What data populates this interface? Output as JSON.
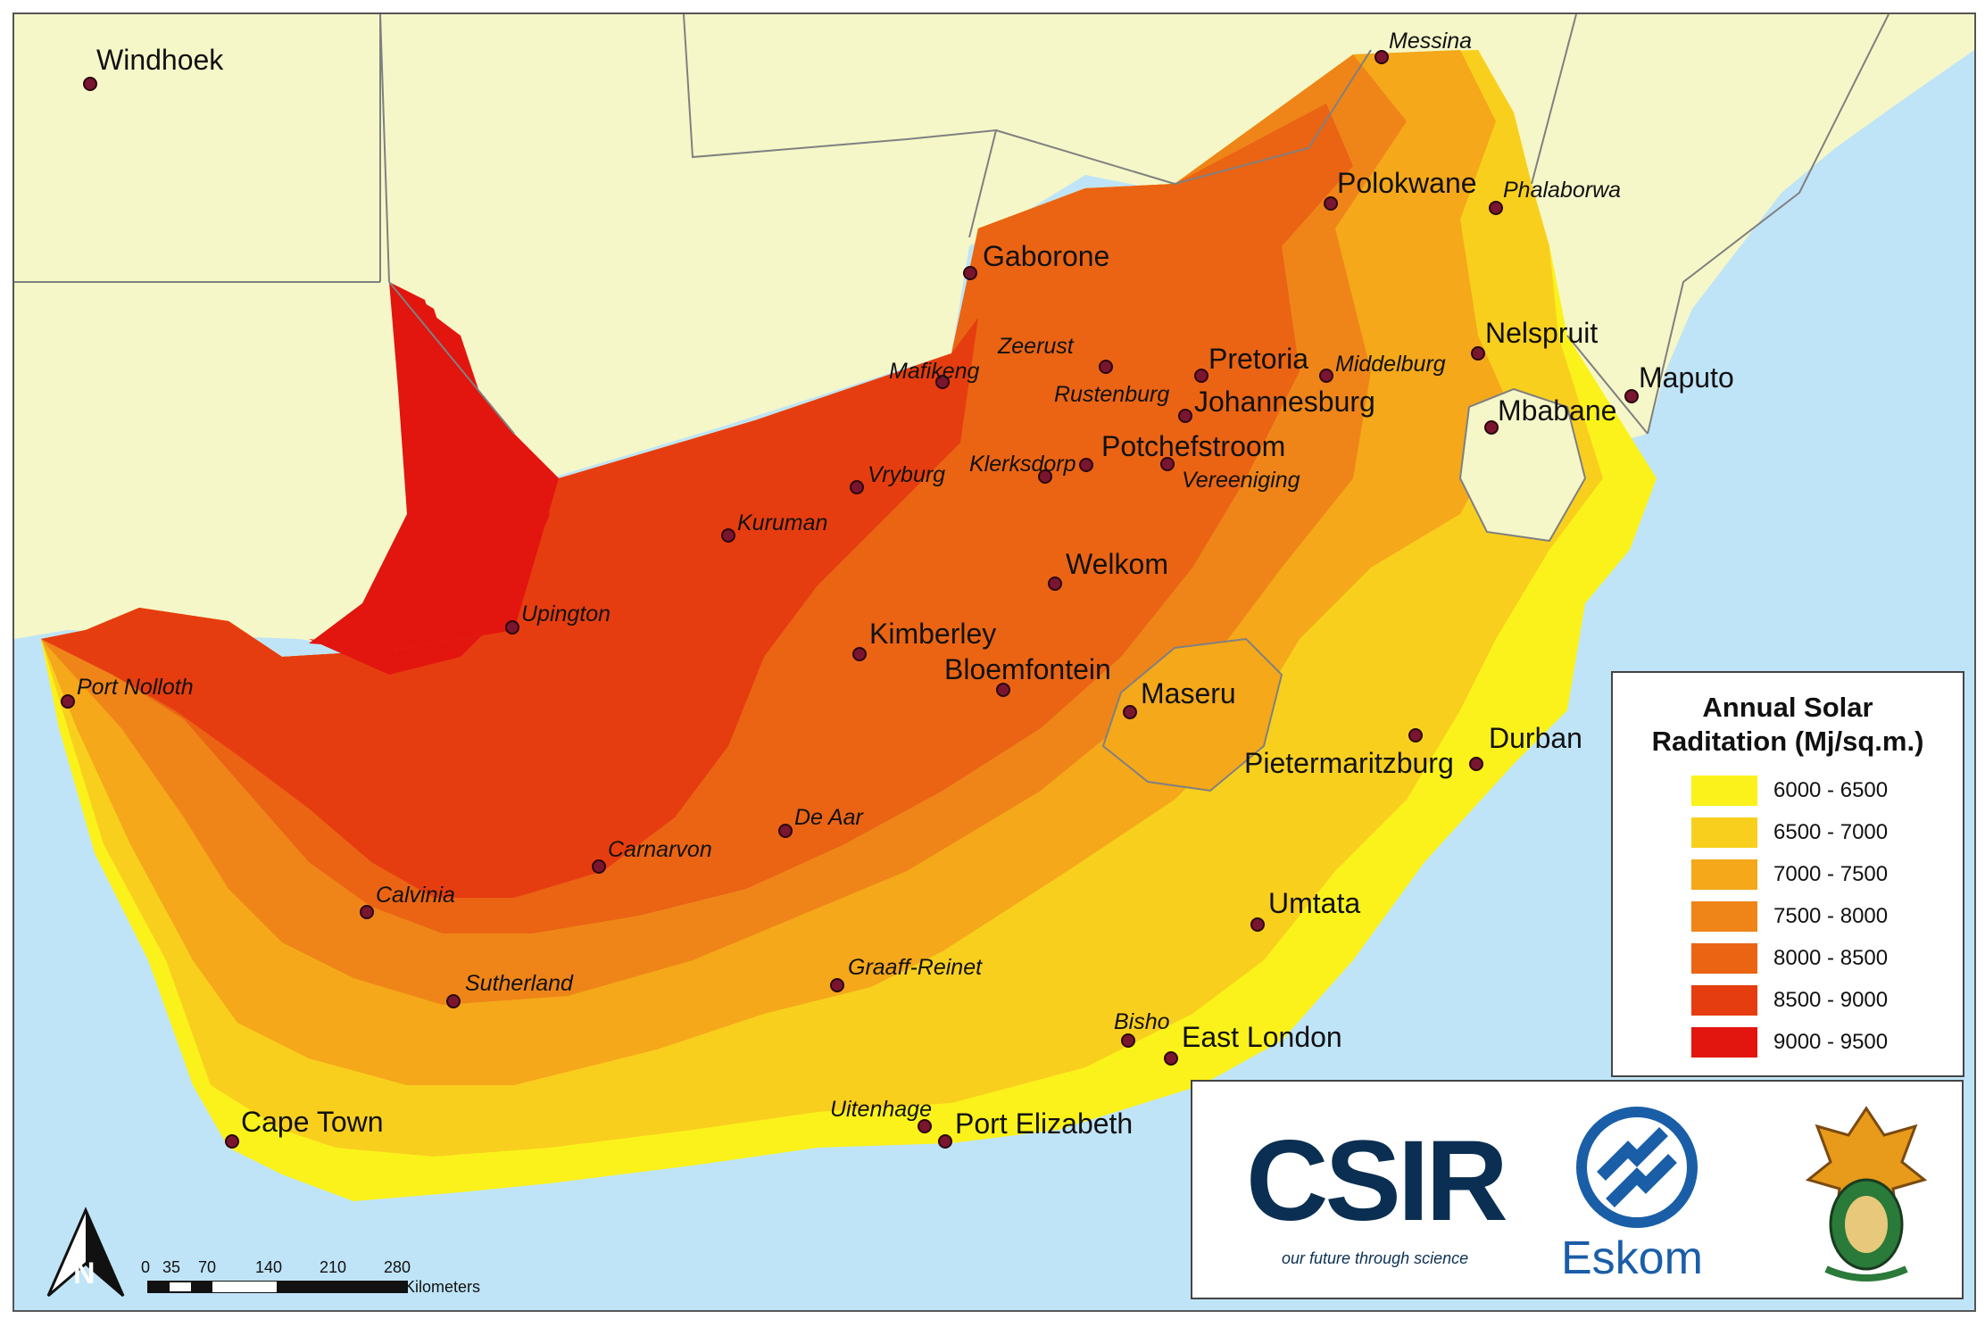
{
  "legend": {
    "title_line1": "Annual Solar",
    "title_line2": "Raditation (Mj/sq.m.)",
    "classes": [
      {
        "label": "6000 - 6500",
        "color": "#fbf21b"
      },
      {
        "label": "6500 - 7000",
        "color": "#f9cf1e"
      },
      {
        "label": "7000 - 7500",
        "color": "#f4a81a"
      },
      {
        "label": "7500 - 8000",
        "color": "#ef8518"
      },
      {
        "label": "8000 - 8500",
        "color": "#ea6414"
      },
      {
        "label": "8500 - 9000",
        "color": "#e63d10"
      },
      {
        "label": "9000 - 9500",
        "color": "#e2150f"
      }
    ]
  },
  "map_colors": {
    "ocean": "#bfe4f7",
    "land": "#f5f7c8",
    "border": "#808080"
  },
  "cities": {
    "windhoek": "Windhoek",
    "messina": "Messina",
    "polokwane": "Polokwane",
    "phalaborwa": "Phalaborwa",
    "gaborone": "Gaborone",
    "nelspruit": "Nelspruit",
    "zeerust": "Zeerust",
    "mafikeng": "Mafikeng",
    "pretoria": "Pretoria",
    "middelburg": "Middelburg",
    "rustenburg": "Rustenburg",
    "johannesburg": "Johannesburg",
    "maputo": "Maputo",
    "mbabane": "Mbabane",
    "klerksdorp": "Klerksdorp",
    "potchefstroom": "Potchefstroom",
    "vryburg": "Vryburg",
    "vereeniging": "Vereeniging",
    "kuruman": "Kuruman",
    "welkom": "Welkom",
    "upington": "Upington",
    "kimberley": "Kimberley",
    "bloemfontein": "Bloemfontein",
    "port_nolloth": "Port Nolloth",
    "maseru": "Maseru",
    "durban": "Durban",
    "pietermaritzburg": "Pietermaritzburg",
    "de_aar": "De Aar",
    "carnarvon": "Carnarvon",
    "calvinia": "Calvinia",
    "umtata": "Umtata",
    "graaff_reinet": "Graaff-Reinet",
    "sutherland": "Sutherland",
    "bisho": "Bisho",
    "east_london": "East London",
    "uitenhage": "Uitenhage",
    "cape_town": "Cape Town",
    "port_elizabeth": "Port Elizabeth"
  },
  "scale_bar": {
    "ticks": [
      "0",
      "35",
      "70",
      "140",
      "210",
      "280"
    ],
    "unit": "Kilometers"
  },
  "north_arrow_letter": "N",
  "logos": {
    "csir": "CSIR",
    "csir_tagline": "our future through science",
    "eskom": "Eskom"
  }
}
